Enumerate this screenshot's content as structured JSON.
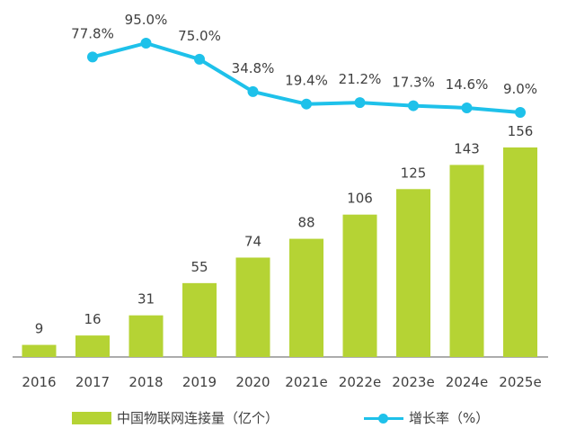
{
  "chart_data": {
    "type": "bar",
    "categories": [
      "2016",
      "2017",
      "2018",
      "2019",
      "2020",
      "2021e",
      "2022e",
      "2023e",
      "2024e",
      "2025e"
    ],
    "series": [
      {
        "name": "中国物联网连接量（亿个）",
        "kind": "bar",
        "values": [
          9,
          16,
          31,
          55,
          74,
          88,
          106,
          125,
          143,
          156
        ],
        "labels": [
          "9",
          "16",
          "31",
          "55",
          "74",
          "88",
          "106",
          "125",
          "143",
          "156"
        ],
        "color": "#b5d334"
      },
      {
        "name": "增长率（%）",
        "kind": "line",
        "values": [
          null,
          77.8,
          95.0,
          75.0,
          34.8,
          19.4,
          21.2,
          17.3,
          14.6,
          9.0
        ],
        "labels": [
          "",
          "77.8%",
          "95.0%",
          "75.0%",
          "34.8%",
          "19.4%",
          "21.2%",
          "17.3%",
          "14.6%",
          "9.0%"
        ],
        "color": "#1ec1ea"
      }
    ],
    "bar_axis": {
      "min": 0,
      "max": 156
    },
    "line_axis": {
      "min": 9.0,
      "max": 95.0
    },
    "grid": false,
    "legend_position": "bottom"
  }
}
